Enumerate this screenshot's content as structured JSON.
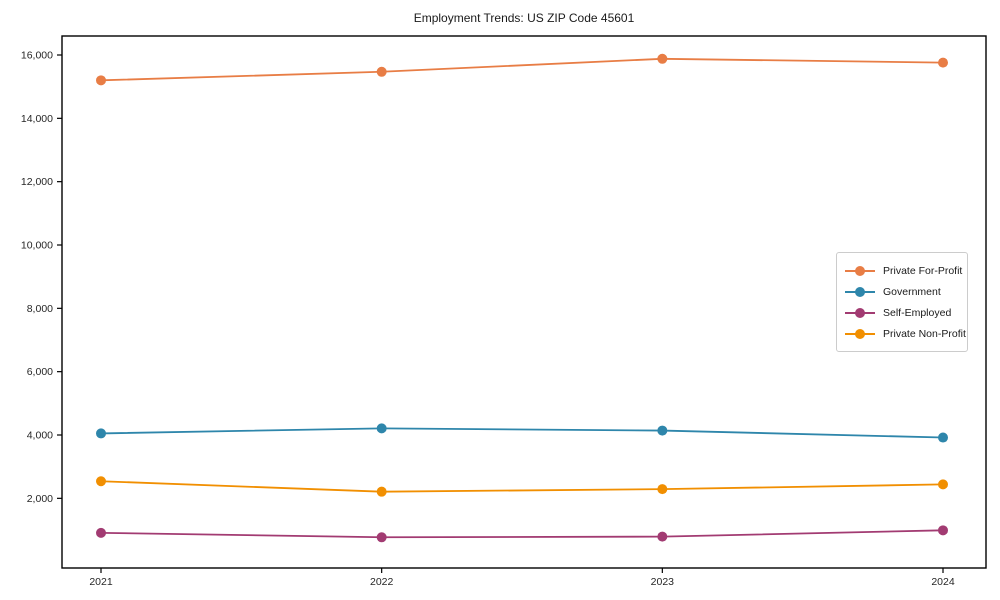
{
  "chart_data": {
    "type": "line",
    "title": "Employment Trends: US ZIP Code 45601",
    "xlabel": "",
    "ylabel": "",
    "x": [
      "2021",
      "2022",
      "2023",
      "2024"
    ],
    "series": [
      {
        "name": "Private For-Profit",
        "color": "#e87d45",
        "values": [
          15200,
          15470,
          15880,
          15760
        ]
      },
      {
        "name": "Government",
        "color": "#2e86ab",
        "values": [
          4050,
          4210,
          4140,
          3920
        ]
      },
      {
        "name": "Self-Employed",
        "color": "#a23b72",
        "values": [
          910,
          770,
          790,
          990
        ]
      },
      {
        "name": "Private Non-Profit",
        "color": "#f18f01",
        "values": [
          2540,
          2210,
          2290,
          2440
        ]
      }
    ],
    "yticks": [
      2000,
      4000,
      6000,
      8000,
      10000,
      12000,
      14000,
      16000
    ],
    "ytick_labels": [
      "2,000",
      "4,000",
      "6,000",
      "8,000",
      "10,000",
      "12,000",
      "14,000",
      "16,000"
    ],
    "ylim": [
      -200,
      16600
    ],
    "grid": false,
    "legend_position": "center-right",
    "frame_color": "#000000",
    "background_color": "#ffffff"
  }
}
